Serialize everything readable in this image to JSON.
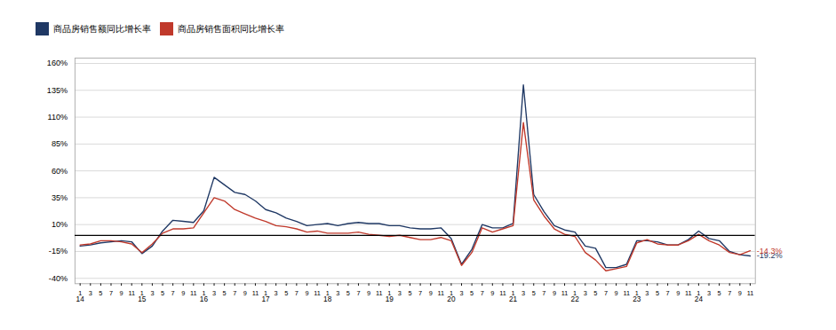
{
  "chart_data": {
    "type": "line",
    "categories": [
      "1",
      "3",
      "5",
      "7",
      "9",
      "11",
      "1",
      "3",
      "5",
      "7",
      "9",
      "11",
      "1",
      "3",
      "5",
      "7",
      "9",
      "11",
      "1",
      "3",
      "5",
      "7",
      "9",
      "11",
      "1",
      "3",
      "5",
      "7",
      "9",
      "11",
      "1",
      "3",
      "5",
      "7",
      "9",
      "11",
      "1",
      "3",
      "5",
      "7",
      "9",
      "11",
      "1",
      "3",
      "5",
      "7",
      "9",
      "11",
      "1",
      "3",
      "5",
      "7",
      "9",
      "11",
      "1",
      "3",
      "5",
      "7",
      "9",
      "11",
      "1",
      "3",
      "5",
      "7",
      "9",
      "11"
    ],
    "group_labels": [
      "14",
      null,
      null,
      null,
      null,
      null,
      "15",
      null,
      null,
      null,
      null,
      null,
      "16",
      null,
      null,
      null,
      null,
      null,
      "17",
      null,
      null,
      null,
      null,
      null,
      "18",
      null,
      null,
      null,
      null,
      null,
      "19",
      null,
      null,
      null,
      null,
      null,
      "20",
      null,
      null,
      null,
      null,
      null,
      "21",
      null,
      null,
      null,
      null,
      null,
      "22",
      null,
      null,
      null,
      null,
      null,
      "23",
      null,
      null,
      null,
      null,
      null,
      "24",
      null,
      null,
      null,
      null,
      null
    ],
    "series": [
      {
        "name": "商品房销售额同比增长率",
        "color": "#1f3864",
        "annotation": "-19.2%",
        "values": [
          -10,
          -9,
          -7,
          -6,
          -5,
          -6,
          -17,
          -10,
          4,
          14,
          13,
          12,
          23,
          54,
          47,
          40,
          38,
          32,
          24,
          21,
          16,
          13,
          9,
          10,
          11,
          9,
          11,
          12,
          11,
          11,
          9,
          9,
          7,
          6,
          6,
          7,
          -3,
          -27,
          -13,
          10,
          7,
          7,
          11,
          140,
          38,
          22,
          9,
          5,
          3,
          -10,
          -12,
          -30,
          -30,
          -27,
          -5,
          -5,
          -6,
          -9,
          -9,
          -4,
          4,
          -3,
          -5,
          -15,
          -18,
          -19.2
        ]
      },
      {
        "name": "商品房销售面积同比增长率",
        "color": "#c0392b",
        "annotation": "-14.3%",
        "values": [
          -9,
          -8,
          -5,
          -5,
          -6,
          -8,
          -16,
          -8,
          2,
          6,
          6,
          7,
          21,
          35,
          32,
          24,
          20,
          16,
          13,
          9,
          8,
          6,
          3,
          4,
          2,
          2,
          2,
          3,
          1,
          0,
          -1,
          0,
          -2,
          -4,
          -4,
          -2,
          -5,
          -28,
          -16,
          7,
          3,
          6,
          9,
          105,
          33,
          18,
          6,
          1,
          -1,
          -16,
          -23,
          -33,
          -31,
          -29,
          -7,
          -4,
          -8,
          -9,
          -9,
          -5,
          1,
          -5,
          -9,
          -16,
          -18,
          -14.3
        ]
      }
    ],
    "hlines": [
      {
        "y": 0,
        "color": "#000000"
      }
    ],
    "ylim": [
      -45,
      165
    ],
    "yticks": [
      {
        "value": -40,
        "label": "-40%"
      },
      {
        "value": -15,
        "label": "-15%"
      },
      {
        "value": 10,
        "label": "10%"
      },
      {
        "value": 35,
        "label": "35%"
      },
      {
        "value": 60,
        "label": "60%"
      },
      {
        "value": 85,
        "label": "85%"
      },
      {
        "value": 110,
        "label": "110%"
      },
      {
        "value": 135,
        "label": "135%"
      },
      {
        "value": 160,
        "label": "160%"
      }
    ],
    "grid": true,
    "legend": "upper left"
  }
}
